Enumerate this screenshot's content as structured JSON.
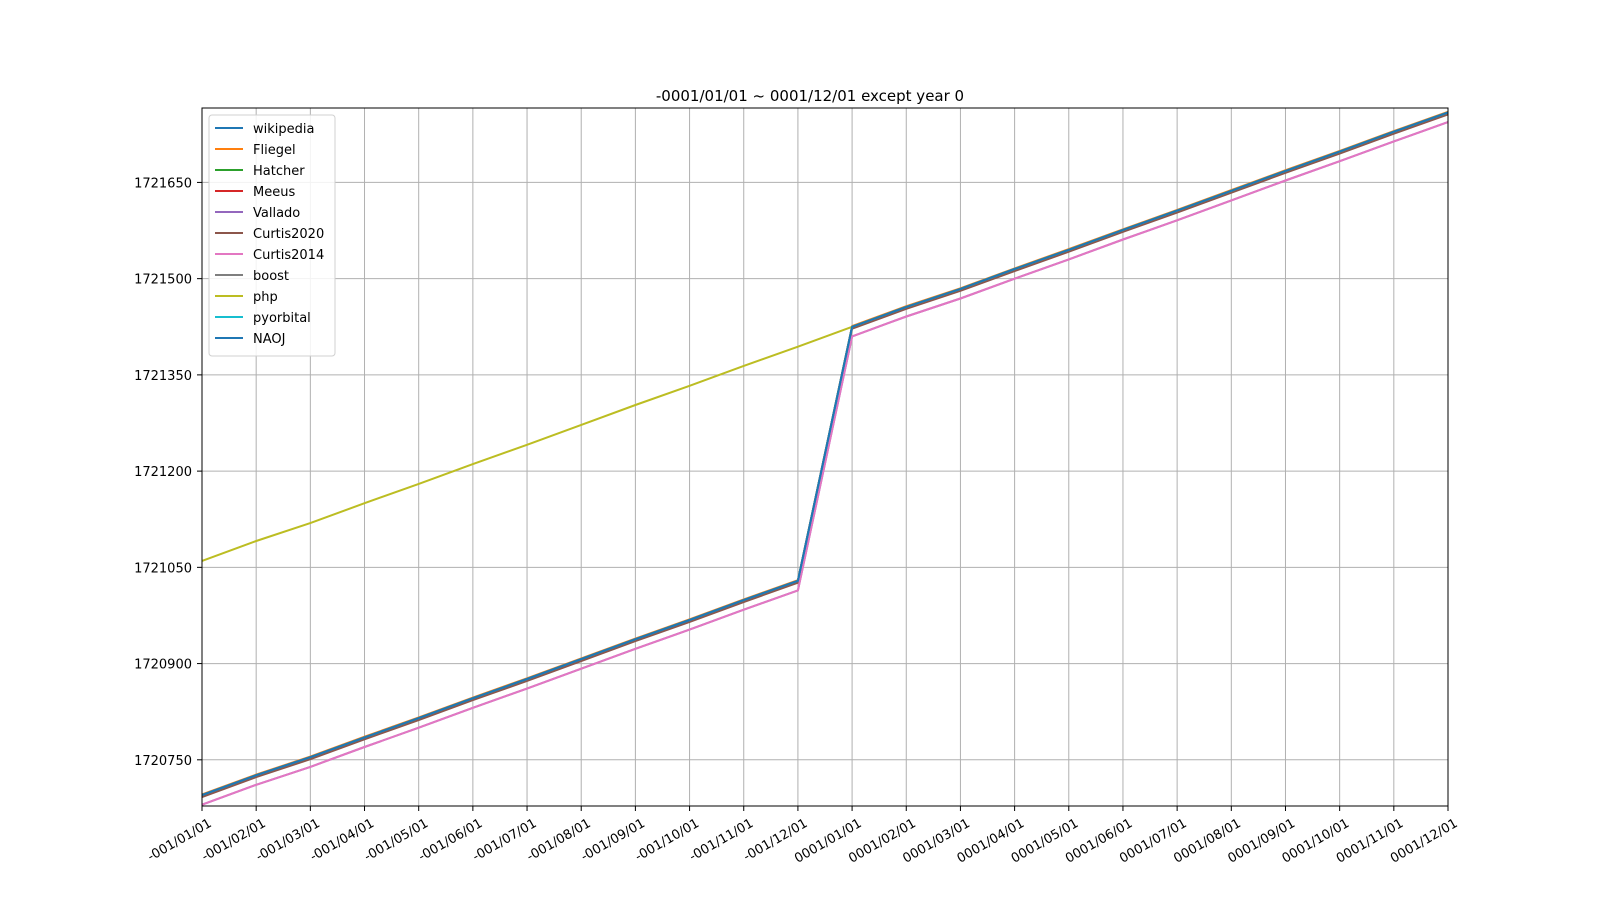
{
  "chart_data": {
    "type": "line",
    "title": "-0001/01/01 ~ 0001/12/01  except year 0",
    "xlabel": "",
    "ylabel": "",
    "grid": true,
    "legend_position": "top-left",
    "categories": [
      "-001/01/01",
      "-001/02/01",
      "-001/03/01",
      "-001/04/01",
      "-001/05/01",
      "-001/06/01",
      "-001/07/01",
      "-001/08/01",
      "-001/09/01",
      "-001/10/01",
      "-001/11/01",
      "-001/12/01",
      "0001/01/01",
      "0001/02/01",
      "0001/03/01",
      "0001/04/01",
      "0001/05/01",
      "0001/06/01",
      "0001/07/01",
      "0001/08/01",
      "0001/09/01",
      "0001/10/01",
      "0001/11/01",
      "0001/12/01"
    ],
    "yticks": [
      1720750,
      1720900,
      1721050,
      1721200,
      1721350,
      1721500,
      1721650
    ],
    "ylim": [
      1720678,
      1721766
    ],
    "series": [
      {
        "name": "wikipedia",
        "color": "#1f77b4",
        "values": [
          1720695,
          1720726,
          1720754,
          1720785,
          1720815,
          1720846,
          1720876,
          1720907,
          1720938,
          1720968,
          1720999,
          1721029,
          1721425,
          1721456,
          1721484,
          1721515,
          1721545,
          1721576,
          1721606,
          1721637,
          1721668,
          1721698,
          1721729,
          1721759
        ]
      },
      {
        "name": "Fliegel",
        "color": "#ff7f0e",
        "values": [
          1720696,
          1720727,
          1720755,
          1720786,
          1720816,
          1720847,
          1720877,
          1720908,
          1720939,
          1720969,
          1721000,
          1721030,
          1721426,
          1721457,
          1721485,
          1721516,
          1721546,
          1721577,
          1721607,
          1721638,
          1721669,
          1721699,
          1721730,
          1721760
        ]
      },
      {
        "name": "Hatcher",
        "color": "#2ca02c",
        "values": [
          1720695,
          1720726,
          1720754,
          1720785,
          1720815,
          1720846,
          1720876,
          1720907,
          1720938,
          1720968,
          1720999,
          1721029,
          1721425,
          1721456,
          1721484,
          1721515,
          1721545,
          1721576,
          1721606,
          1721637,
          1721668,
          1721698,
          1721729,
          1721759
        ]
      },
      {
        "name": "Meeus",
        "color": "#d62728",
        "values": [
          1720695,
          1720726,
          1720754,
          1720785,
          1720815,
          1720846,
          1720876,
          1720907,
          1720938,
          1720968,
          1720999,
          1721029,
          1721425,
          1721456,
          1721484,
          1721515,
          1721545,
          1721576,
          1721606,
          1721637,
          1721668,
          1721698,
          1721729,
          1721759
        ]
      },
      {
        "name": "Vallado",
        "color": "#9467bd",
        "values": [
          1720680,
          1720711,
          1720739,
          1720770,
          1720800,
          1720831,
          1720861,
          1720892,
          1720923,
          1720953,
          1720984,
          1721014,
          1721410,
          1721441,
          1721469,
          1721500,
          1721530,
          1721561,
          1721591,
          1721622,
          1721653,
          1721683,
          1721714,
          1721744
        ]
      },
      {
        "name": "Curtis2020",
        "color": "#8c564b",
        "values": [
          1720692,
          1720723,
          1720751,
          1720782,
          1720812,
          1720843,
          1720873,
          1720904,
          1720935,
          1720965,
          1720996,
          1721026,
          1721422,
          1721453,
          1721481,
          1721512,
          1721542,
          1721573,
          1721603,
          1721634,
          1721665,
          1721695,
          1721726,
          1721756
        ]
      },
      {
        "name": "Curtis2014",
        "color": "#e377c2",
        "values": [
          1720680,
          1720711,
          1720739,
          1720770,
          1720800,
          1720831,
          1720861,
          1720892,
          1720923,
          1720953,
          1720984,
          1721014,
          1721410,
          1721441,
          1721469,
          1721500,
          1721530,
          1721561,
          1721591,
          1721622,
          1721653,
          1721683,
          1721714,
          1721744
        ]
      },
      {
        "name": "boost",
        "color": "#7f7f7f",
        "values": [
          1720695,
          1720726,
          1720754,
          1720785,
          1720815,
          1720846,
          1720876,
          1720907,
          1720938,
          1720968,
          1720999,
          1721029,
          1721425,
          1721456,
          1721484,
          1721515,
          1721545,
          1721576,
          1721606,
          1721637,
          1721668,
          1721698,
          1721729,
          1721759
        ]
      },
      {
        "name": "php",
        "color": "#bcbd22",
        "values": [
          1721060,
          1721091,
          1721119,
          1721150,
          1721180,
          1721211,
          1721241,
          1721272,
          1721303,
          1721333,
          1721364,
          1721394,
          1721425,
          1721456,
          1721484,
          1721515,
          1721545,
          1721576,
          1721606,
          1721637,
          1721668,
          1721698,
          1721729,
          1721759
        ]
      },
      {
        "name": "pyorbital",
        "color": "#17becf",
        "values": [
          1720695,
          1720726,
          1720754,
          1720785,
          1720815,
          1720846,
          1720876,
          1720907,
          1720938,
          1720968,
          1720999,
          1721029,
          1721425,
          1721456,
          1721484,
          1721515,
          1721545,
          1721576,
          1721606,
          1721637,
          1721668,
          1721698,
          1721729,
          1721759
        ]
      },
      {
        "name": "NAOJ",
        "color": "#1f77b4",
        "values": [
          1720695,
          1720726,
          1720754,
          1720785,
          1720815,
          1720846,
          1720876,
          1720907,
          1720938,
          1720968,
          1720999,
          1721029,
          1721425,
          1721456,
          1721484,
          1721515,
          1721545,
          1721576,
          1721606,
          1721637,
          1721668,
          1721698,
          1721729,
          1721759
        ]
      }
    ]
  }
}
